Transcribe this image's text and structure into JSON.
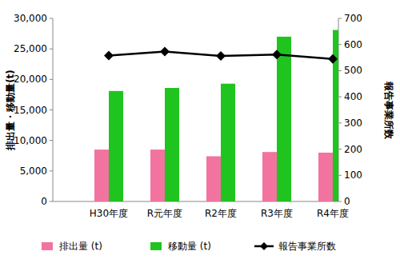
{
  "chart_data": {
    "type": "bar",
    "categories": [
      "H30年度",
      "R元年度",
      "R2年度",
      "R3年度",
      "R4年度"
    ],
    "series": [
      {
        "name": "排出量 (t)",
        "type": "bar",
        "color": "#f2739f",
        "values": [
          8500,
          8500,
          7400,
          8100,
          8000
        ]
      },
      {
        "name": "移動量 (t)",
        "type": "bar",
        "color": "#1fc41f",
        "values": [
          18100,
          18600,
          19300,
          27000,
          28100
        ]
      },
      {
        "name": "報告事業所数",
        "type": "line",
        "color": "#000000",
        "marker": "diamond",
        "line_style": "solid",
        "axis": "y2",
        "values": [
          558,
          573,
          556,
          562,
          545
        ]
      }
    ],
    "y_label": "排出量・移動量(t)",
    "y2_label": "報告事業所数",
    "ylim": [
      0,
      30000
    ],
    "yticks": [
      0,
      {
        "value": 5000,
        "label": "5,000"
      },
      {
        "value": 10000,
        "label": "10,000"
      },
      {
        "value": 15000,
        "label": "15,000"
      },
      {
        "value": 20000,
        "label": "20,000"
      },
      {
        "value": 25000,
        "label": "25,000"
      },
      {
        "value": 30000,
        "label": "30,000"
      }
    ],
    "y2lim": [
      0,
      700
    ],
    "y2ticks": [
      0,
      100,
      200,
      300,
      400,
      500,
      600,
      700
    ],
    "grid": false,
    "legend": "bottom"
  }
}
